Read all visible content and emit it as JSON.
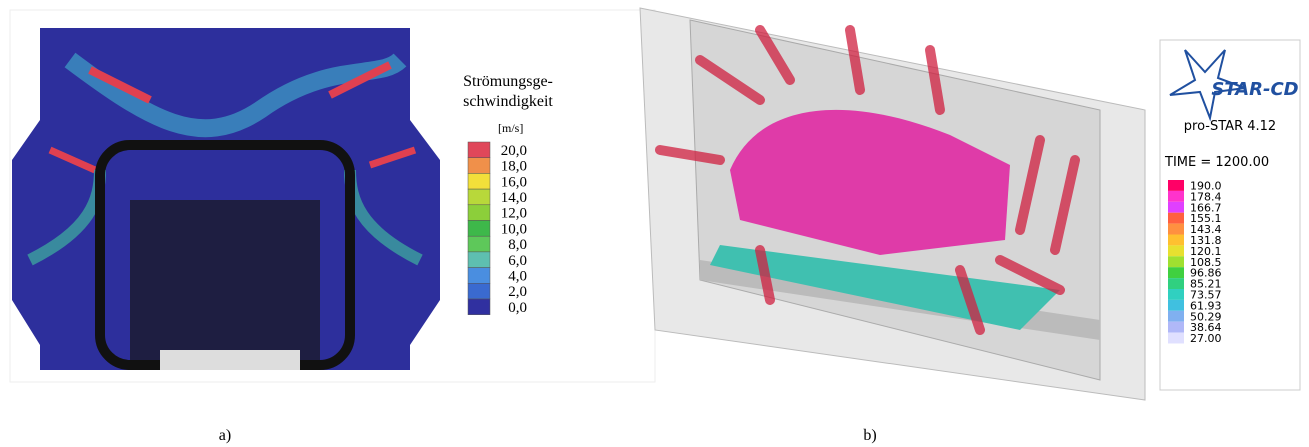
{
  "panel_a": {
    "legend_title": [
      "Strömungsge-",
      "schwindigkeit"
    ],
    "unit": "[m/s]",
    "labels": [
      "20,0",
      "18,0",
      "16,0",
      "14,0",
      "12,0",
      "10,0",
      "8,0",
      "6,0",
      "4,0",
      "2,0",
      "0,0"
    ],
    "colors": [
      "#e0475a",
      "#f0904a",
      "#f2e03a",
      "#b8d83a",
      "#8ccf3a",
      "#3eb84a",
      "#5ec85a",
      "#5ebfb0",
      "#4a8ee0",
      "#3a6ad0",
      "#3030a0"
    ],
    "caption": "a)"
  },
  "panel_b": {
    "logo": "STAR-CD",
    "version": "pro-STAR 4.12",
    "time": "TIME = 1200.00",
    "labels": [
      "190.0",
      "178.4",
      "166.7",
      "155.1",
      "143.4",
      "131.8",
      "120.1",
      "108.5",
      "96.86",
      "85.21",
      "73.57",
      "61.93",
      "50.29",
      "38.64",
      "27.00"
    ],
    "colors": [
      "#ff0066",
      "#ff33cc",
      "#e040ff",
      "#ff6040",
      "#ff9040",
      "#ffc030",
      "#e8e030",
      "#a0e030",
      "#40d040",
      "#30d080",
      "#30d0c0",
      "#40c0e0",
      "#80b0f0",
      "#b0b8f8",
      "#e0e0ff"
    ],
    "caption": "b)"
  }
}
